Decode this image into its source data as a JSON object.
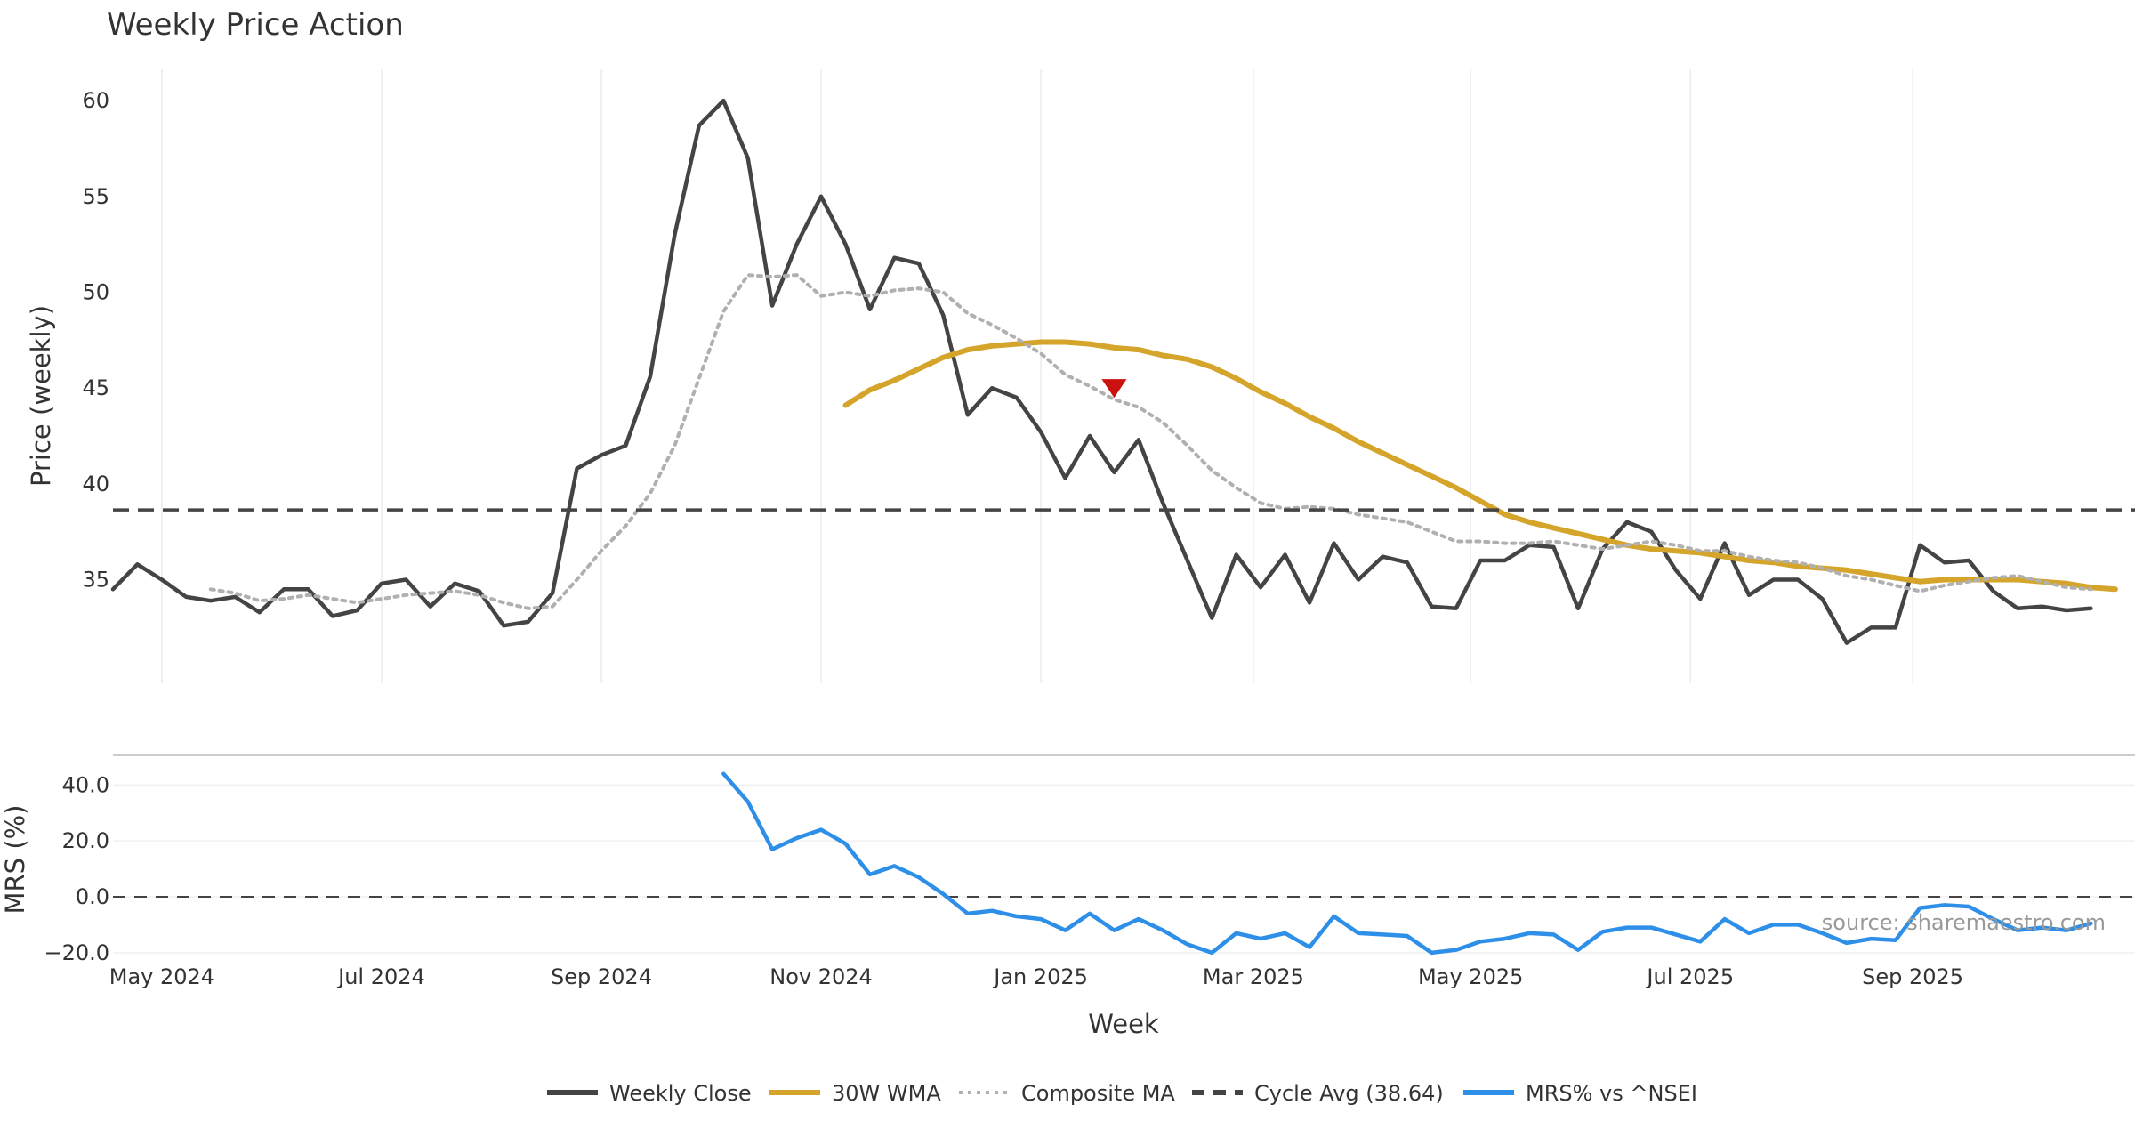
{
  "chart_data": [
    {
      "type": "line",
      "title": "Weekly Price Action",
      "xlabel": "",
      "ylabel": "Price (weekly)",
      "ylim": [
        29.5,
        62
      ],
      "y_ticks": [
        35,
        40,
        45,
        50,
        55,
        60
      ],
      "grid": "vertical",
      "x_tick_labels": [
        "May 2024",
        "Jul 2024",
        "Sep 2024",
        "Nov 2024",
        "Jan 2025",
        "Mar 2025",
        "May 2025",
        "Jul 2025",
        "Sep 2025"
      ],
      "x_tick_weeks": [
        2,
        11,
        20,
        29,
        38,
        46.7,
        55.6,
        64.6,
        73.7
      ],
      "series": [
        {
          "name": "Weekly Close",
          "color": "#444444",
          "style": "solid",
          "x_start": 0,
          "values": [
            34.5,
            35.8,
            35.0,
            34.1,
            33.9,
            34.1,
            33.3,
            34.5,
            34.5,
            33.1,
            33.4,
            34.8,
            35.0,
            33.6,
            34.8,
            34.4,
            32.6,
            32.8,
            34.3,
            40.8,
            41.5,
            42.0,
            45.6,
            53.0,
            58.7,
            60.0,
            57.0,
            49.3,
            52.5,
            55.0,
            52.5,
            49.1,
            51.8,
            51.5,
            48.8,
            43.6,
            45.0,
            44.5,
            42.7,
            40.3,
            42.5,
            40.6,
            42.3,
            39.0,
            36.0,
            33.0,
            36.3,
            34.6,
            36.3,
            33.8,
            36.9,
            35.0,
            36.2,
            35.9,
            33.6,
            33.5,
            36.0,
            36.0,
            36.8,
            36.7,
            33.5,
            36.6,
            38.0,
            37.5,
            35.5,
            34.0,
            36.9,
            34.2,
            35.0,
            35.0,
            34.0,
            31.7,
            32.5,
            32.5,
            36.8,
            35.9,
            36.0,
            34.4,
            33.5,
            33.6,
            33.4,
            33.5
          ]
        },
        {
          "name": "30W WMA",
          "color": "#D4A52A",
          "style": "solid",
          "x_start": 30,
          "values": [
            44.1,
            44.9,
            45.4,
            46.0,
            46.6,
            47.0,
            47.2,
            47.3,
            47.4,
            47.4,
            47.3,
            47.1,
            47.0,
            46.7,
            46.5,
            46.1,
            45.5,
            44.8,
            44.2,
            43.5,
            42.9,
            42.2,
            41.6,
            41.0,
            40.4,
            39.8,
            39.1,
            38.4,
            38.0,
            37.7,
            37.4,
            37.1,
            36.8,
            36.6,
            36.5,
            36.4,
            36.2,
            36.0,
            35.9,
            35.7,
            35.6,
            35.5,
            35.3,
            35.1,
            34.9,
            35.0,
            35.0,
            35.0,
            35.0,
            34.9,
            34.8,
            34.6,
            34.5
          ]
        },
        {
          "name": "Composite MA",
          "color": "#B0B0B0",
          "style": "dotted",
          "x_start": 4,
          "values": [
            34.5,
            34.3,
            33.9,
            34.0,
            34.2,
            34.0,
            33.8,
            34.0,
            34.2,
            34.3,
            34.4,
            34.2,
            33.8,
            33.5,
            33.6,
            35.0,
            36.5,
            37.8,
            39.5,
            42.0,
            45.5,
            49.0,
            50.9,
            50.8,
            50.9,
            49.8,
            50.0,
            49.8,
            50.1,
            50.2,
            50.0,
            48.9,
            48.3,
            47.6,
            46.8,
            45.7,
            45.1,
            44.4,
            44.0,
            43.2,
            42.0,
            40.7,
            39.8,
            39.0,
            38.7,
            38.8,
            38.7,
            38.4,
            38.2,
            38.0,
            37.5,
            37.0,
            37.0,
            36.9,
            36.9,
            37.0,
            36.8,
            36.6,
            36.8,
            37.0,
            36.8,
            36.5,
            36.5,
            36.2,
            36.0,
            35.9,
            35.6,
            35.2,
            35.0,
            34.7,
            34.4,
            34.7,
            34.9,
            35.1,
            35.2,
            34.9,
            34.6,
            34.5
          ]
        },
        {
          "name": "Cycle Avg (38.64)",
          "color": "#444444",
          "style": "dashed",
          "y": 38.64
        }
      ],
      "annotations": [
        {
          "type": "marker",
          "shape": "triangle-down",
          "color": "#CC1111",
          "x": 41,
          "y": 45.0
        }
      ]
    },
    {
      "type": "line",
      "title": "",
      "xlabel": "Week",
      "ylabel": "MRS (%)",
      "ylim": [
        -21,
        49
      ],
      "y_ticks": [
        -20.0,
        0.0,
        20.0,
        40.0
      ],
      "y_tick_labels": [
        "−20.0",
        "0.0",
        "20.0",
        "40.0"
      ],
      "reference_line": {
        "y": 0,
        "style": "dashed",
        "color": "#444444"
      },
      "series": [
        {
          "name": "MRS% vs ^NSEI",
          "color": "#2E8FE8",
          "style": "solid",
          "x_start": 25,
          "values": [
            44,
            34,
            17,
            21,
            24,
            19,
            8,
            11,
            7,
            1,
            -6,
            -5,
            -7,
            -8,
            -12,
            -6,
            -12,
            -8,
            -12,
            -17,
            -20,
            -13,
            -15,
            -13,
            -18,
            -7,
            -13,
            -13.5,
            -14,
            -20,
            -19,
            -16,
            -15,
            -13,
            -13.5,
            -19,
            -12.5,
            -11,
            -11,
            -13.5,
            -16,
            -8,
            -13,
            -10,
            -10,
            -13,
            -16.5,
            -15,
            -15.5,
            -4,
            -3,
            -3.5,
            -8,
            -12,
            -11,
            -12,
            -9.5
          ]
        }
      ]
    }
  ],
  "legend": {
    "items": [
      {
        "label": "Weekly Close",
        "color": "#444444",
        "style": "solid"
      },
      {
        "label": "30W WMA",
        "color": "#D4A52A",
        "style": "solid"
      },
      {
        "label": "Composite MA",
        "color": "#B0B0B0",
        "style": "dotted"
      },
      {
        "label": "Cycle Avg (38.64)",
        "color": "#444444",
        "style": "dashed"
      },
      {
        "label": "MRS% vs ^NSEI",
        "color": "#2E8FE8",
        "style": "solid"
      }
    ]
  },
  "source_note": "source: sharemaestro.com"
}
